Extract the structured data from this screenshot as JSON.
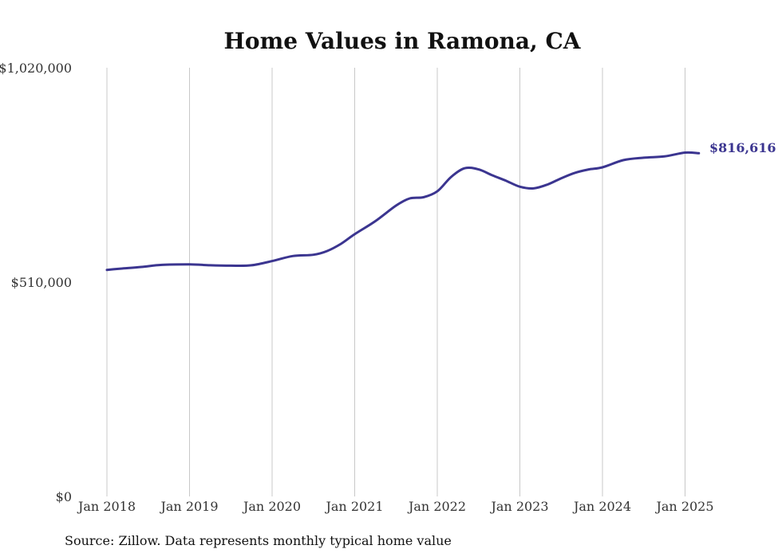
{
  "chart_data": {
    "type": "line",
    "title": "Home Values in Ramona, CA",
    "source": "Source: Zillow. Data represents monthly typical home value",
    "xlabel": "",
    "ylabel": "",
    "x_ticks": [
      "Jan 2018",
      "Jan 2019",
      "Jan 2020",
      "Jan 2021",
      "Jan 2022",
      "Jan 2023",
      "Jan 2024",
      "Jan 2025"
    ],
    "y_ticks": [
      {
        "value": 0,
        "label": "$0"
      },
      {
        "value": 510000,
        "label": "$510,000"
      },
      {
        "value": 1020000,
        "label": "$1,020,000"
      }
    ],
    "ylim": [
      0,
      1020000
    ],
    "xlim": [
      "2018-01",
      "2025-03"
    ],
    "grid": {
      "vertical": true,
      "horizontal": false
    },
    "line_color": "#3b3590",
    "end_label": "$816,616",
    "series": [
      {
        "values": [
          {
            "x": "2018-01",
            "y": 539000
          },
          {
            "x": "2018-03",
            "y": 542000
          },
          {
            "x": "2018-06",
            "y": 546000
          },
          {
            "x": "2018-09",
            "y": 551000
          },
          {
            "x": "2019-01",
            "y": 552000
          },
          {
            "x": "2019-04",
            "y": 550000
          },
          {
            "x": "2019-07",
            "y": 549000
          },
          {
            "x": "2019-10",
            "y": 550000
          },
          {
            "x": "2020-01",
            "y": 560000
          },
          {
            "x": "2020-04",
            "y": 572000
          },
          {
            "x": "2020-07",
            "y": 575000
          },
          {
            "x": "2020-09",
            "y": 584000
          },
          {
            "x": "2020-11",
            "y": 601000
          },
          {
            "x": "2021-01",
            "y": 624000
          },
          {
            "x": "2021-04",
            "y": 655000
          },
          {
            "x": "2021-07",
            "y": 692000
          },
          {
            "x": "2021-09",
            "y": 709000
          },
          {
            "x": "2021-11",
            "y": 712000
          },
          {
            "x": "2022-01",
            "y": 726000
          },
          {
            "x": "2022-03",
            "y": 760000
          },
          {
            "x": "2022-05",
            "y": 781000
          },
          {
            "x": "2022-07",
            "y": 778000
          },
          {
            "x": "2022-09",
            "y": 764000
          },
          {
            "x": "2022-11",
            "y": 751000
          },
          {
            "x": "2023-01",
            "y": 737000
          },
          {
            "x": "2023-03",
            "y": 733000
          },
          {
            "x": "2023-05",
            "y": 742000
          },
          {
            "x": "2023-07",
            "y": 757000
          },
          {
            "x": "2023-09",
            "y": 770000
          },
          {
            "x": "2023-11",
            "y": 778000
          },
          {
            "x": "2024-01",
            "y": 783000
          },
          {
            "x": "2024-04",
            "y": 800000
          },
          {
            "x": "2024-07",
            "y": 806000
          },
          {
            "x": "2024-10",
            "y": 809000
          },
          {
            "x": "2025-01",
            "y": 818000
          },
          {
            "x": "2025-03",
            "y": 816616
          }
        ]
      }
    ]
  }
}
